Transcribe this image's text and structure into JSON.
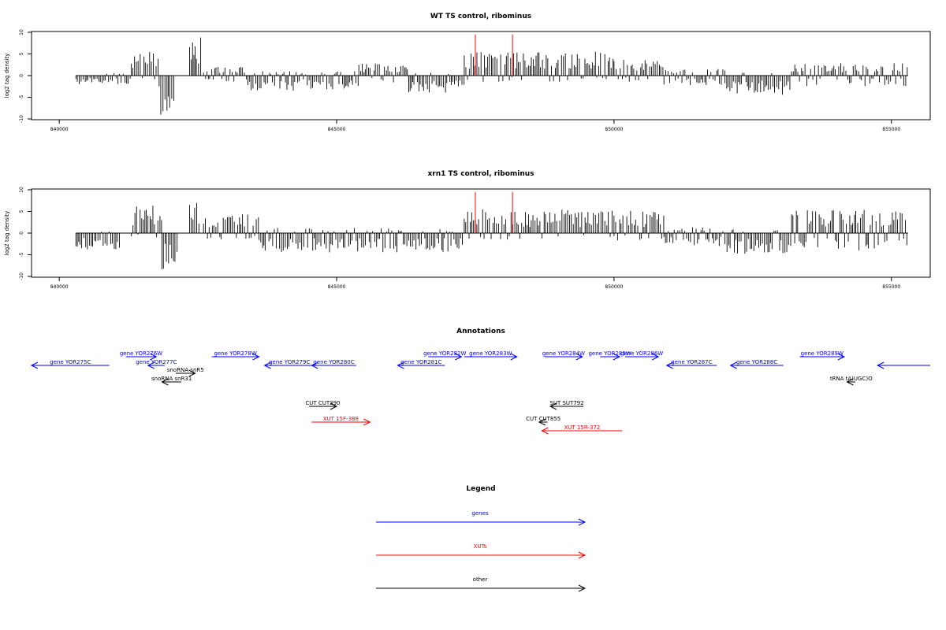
{
  "colors": {
    "positive": "#000000",
    "negative": "#000000",
    "highlight": "#ff0000",
    "genes": "#0000ff",
    "xuts": "#ff0000",
    "other": "#000000"
  },
  "chart_data": [
    {
      "type": "bar",
      "title": "WT TS control, ribominus",
      "xlabel": "",
      "ylabel": "log2 tag density",
      "xlim": [
        839500,
        855700
      ],
      "ylim": [
        -10,
        10
      ],
      "x_ticks": [
        "840000",
        "845000",
        "850000",
        "855000"
      ],
      "y_ticks": [
        "10",
        "5",
        "0",
        "-5",
        "-10"
      ],
      "segments": [
        {
          "x0": 840300,
          "x1": 841300,
          "min": -2.2,
          "max": 0.6
        },
        {
          "x0": 841300,
          "x1": 841800,
          "min": -1.0,
          "max": 5.8
        },
        {
          "x0": 841800,
          "x1": 842100,
          "min": -9.0,
          "max": 0.5
        },
        {
          "x0": 842350,
          "x1": 842550,
          "min": -0.3,
          "max": 9.5
        },
        {
          "x0": 842600,
          "x1": 843400,
          "min": -1.5,
          "max": 2.0
        },
        {
          "x0": 843400,
          "x1": 845400,
          "min": -3.5,
          "max": 1.0
        },
        {
          "x0": 845400,
          "x1": 846300,
          "min": -2.0,
          "max": 2.8
        },
        {
          "x0": 846300,
          "x1": 847300,
          "min": -4.0,
          "max": 0.8
        },
        {
          "x0": 847300,
          "x1": 849500,
          "min": -1.5,
          "max": 5.5
        },
        {
          "x0": 849500,
          "x1": 850000,
          "min": -0.8,
          "max": 5.8
        },
        {
          "x0": 850000,
          "x1": 850900,
          "min": -1.5,
          "max": 3.8
        },
        {
          "x0": 850900,
          "x1": 852000,
          "min": -2.5,
          "max": 1.5
        },
        {
          "x0": 852000,
          "x1": 853200,
          "min": -4.5,
          "max": 0.8
        },
        {
          "x0": 853200,
          "x1": 855300,
          "min": -2.5,
          "max": 3.0
        }
      ],
      "highlights": [
        {
          "x": 847500,
          "y": 9.5
        },
        {
          "x": 848170,
          "y": 9.5
        }
      ]
    },
    {
      "type": "bar",
      "title": "xrn1 TS control, ribominus",
      "xlabel": "",
      "ylabel": "log2 tag density",
      "xlim": [
        839500,
        855700
      ],
      "ylim": [
        -10,
        10
      ],
      "x_ticks": [
        "840000",
        "845000",
        "850000",
        "855000"
      ],
      "y_ticks": [
        "10",
        "5",
        "0",
        "-5",
        "-10"
      ],
      "segments": [
        {
          "x0": 840300,
          "x1": 841100,
          "min": -3.8,
          "max": 0.5
        },
        {
          "x0": 841300,
          "x1": 841850,
          "min": -1.0,
          "max": 6.5
        },
        {
          "x0": 841850,
          "x1": 842150,
          "min": -9.0,
          "max": 0.5
        },
        {
          "x0": 842350,
          "x1": 842550,
          "min": -0.3,
          "max": 8.8
        },
        {
          "x0": 842600,
          "x1": 843600,
          "min": -1.5,
          "max": 4.5
        },
        {
          "x0": 843600,
          "x1": 846200,
          "min": -4.5,
          "max": 1.2
        },
        {
          "x0": 846200,
          "x1": 847300,
          "min": -4.5,
          "max": 1.0
        },
        {
          "x0": 847300,
          "x1": 849500,
          "min": -1.5,
          "max": 5.5
        },
        {
          "x0": 849500,
          "x1": 850000,
          "min": -1.0,
          "max": 6.0
        },
        {
          "x0": 850000,
          "x1": 850900,
          "min": -2.0,
          "max": 5.5
        },
        {
          "x0": 850900,
          "x1": 852000,
          "min": -3.0,
          "max": 1.5
        },
        {
          "x0": 852000,
          "x1": 853200,
          "min": -4.8,
          "max": 1.0
        },
        {
          "x0": 853200,
          "x1": 855300,
          "min": -4.0,
          "max": 5.5
        }
      ],
      "highlights": [
        {
          "x": 847500,
          "y": 9.5
        },
        {
          "x": 848170,
          "y": 9.5
        }
      ]
    }
  ],
  "annotations": {
    "title": "Annotations",
    "xlim": [
      839500,
      855700
    ],
    "items": [
      {
        "label": "gene YOR275C",
        "start": 839500,
        "end": 840900,
        "strand": "-",
        "row": 1,
        "kind": "genes"
      },
      {
        "label": "gene YOR276W",
        "start": 841200,
        "end": 841750,
        "strand": "+",
        "row": 0,
        "kind": "genes"
      },
      {
        "label": "gene YOR277C",
        "start": 841600,
        "end": 841900,
        "strand": "-",
        "row": 1,
        "kind": "genes"
      },
      {
        "label": "snoRNA snR5",
        "start": 842100,
        "end": 842450,
        "strand": "+",
        "row": 2,
        "kind": "other"
      },
      {
        "label": "snoRNA snR31",
        "start": 841850,
        "end": 842200,
        "strand": "-",
        "row": 3,
        "kind": "other"
      },
      {
        "label": "gene YOR278W",
        "start": 842750,
        "end": 843600,
        "strand": "+",
        "row": 0,
        "kind": "genes"
      },
      {
        "label": "gene YOR279C",
        "start": 843700,
        "end": 844600,
        "strand": "-",
        "row": 1,
        "kind": "genes"
      },
      {
        "label": "gene YOR280C",
        "start": 844550,
        "end": 845350,
        "strand": "-",
        "row": 1,
        "kind": "genes"
      },
      {
        "label": "CUT CUT390",
        "start": 844500,
        "end": 845000,
        "strand": "+",
        "row": 4,
        "kind": "other"
      },
      {
        "label": "XUT 15F-388",
        "start": 844550,
        "end": 845600,
        "strand": "+",
        "row": 5,
        "kind": "xuts"
      },
      {
        "label": "gene YOR281C",
        "start": 846100,
        "end": 846950,
        "strand": "-",
        "row": 1,
        "kind": "genes"
      },
      {
        "label": "gene YOR282W",
        "start": 846650,
        "end": 847250,
        "strand": "+",
        "row": 0,
        "kind": "genes"
      },
      {
        "label": "gene YOR283W",
        "start": 847300,
        "end": 848250,
        "strand": "+",
        "row": 0,
        "kind": "genes"
      },
      {
        "label": "gene YOR284W",
        "start": 848750,
        "end": 849430,
        "strand": "+",
        "row": 0,
        "kind": "genes"
      },
      {
        "label": "SUT SUT792",
        "start": 848850,
        "end": 849450,
        "strand": "-",
        "row": 4,
        "kind": "other"
      },
      {
        "label": "CUT CUT855",
        "start": 848650,
        "end": 848800,
        "strand": "-",
        "row": 5,
        "kind": "other"
      },
      {
        "label": "XUT 15R-372",
        "start": 848700,
        "end": 850150,
        "strand": "-",
        "row": 6,
        "kind": "xuts"
      },
      {
        "label": "gene YOR285W",
        "start": 849750,
        "end": 850100,
        "strand": "+",
        "row": 0,
        "kind": "genes"
      },
      {
        "label": "gene YOR286W",
        "start": 850200,
        "end": 850800,
        "strand": "+",
        "row": 0,
        "kind": "genes"
      },
      {
        "label": "gene YOR287C",
        "start": 850950,
        "end": 851850,
        "strand": "-",
        "row": 1,
        "kind": "genes"
      },
      {
        "label": "gene YOR288C",
        "start": 852100,
        "end": 853050,
        "strand": "-",
        "row": 1,
        "kind": "genes"
      },
      {
        "label": "gene YOR289W",
        "start": 853350,
        "end": 854150,
        "strand": "+",
        "row": 0,
        "kind": "genes"
      },
      {
        "label": "tRNA tA(UGC)O",
        "start": 854200,
        "end": 854350,
        "strand": "-",
        "row": 3,
        "kind": "other"
      },
      {
        "label": "",
        "start": 854750,
        "end": 855700,
        "strand": "-",
        "row": 1,
        "kind": "genes"
      }
    ]
  },
  "legend": {
    "title": "Legend",
    "items": [
      {
        "label": "genes",
        "kind": "genes"
      },
      {
        "label": "XUTs",
        "kind": "xuts"
      },
      {
        "label": "other",
        "kind": "other"
      }
    ]
  }
}
